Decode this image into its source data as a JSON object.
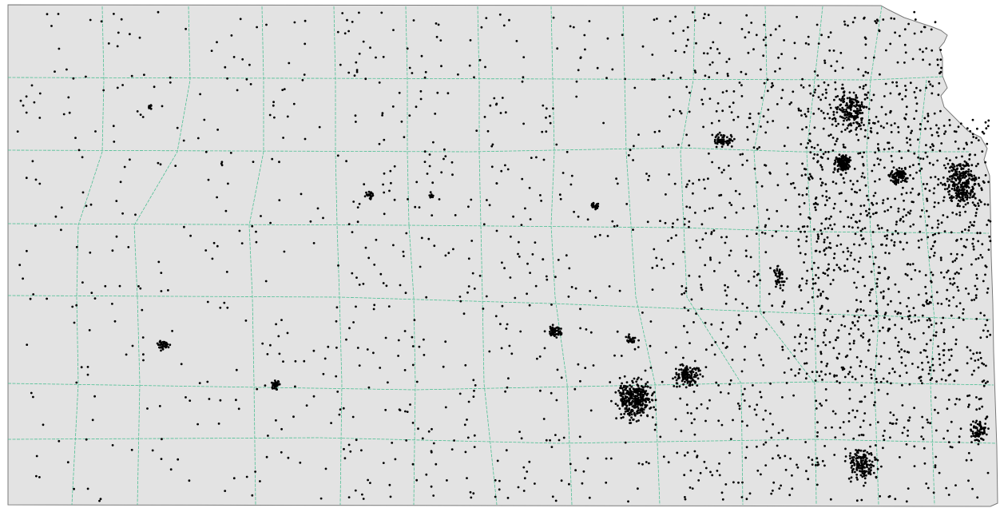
{
  "map": {
    "kind": "dot-density county map",
    "region": "Kansas",
    "colors": {
      "background": "#ffffff",
      "land_fill": "#e3e3e3",
      "state_border": "#7a7a7a",
      "county_border": "#4fbf94",
      "dot": "#000000"
    },
    "county_count": 105,
    "dot_style": "small black points indicating locations"
  }
}
